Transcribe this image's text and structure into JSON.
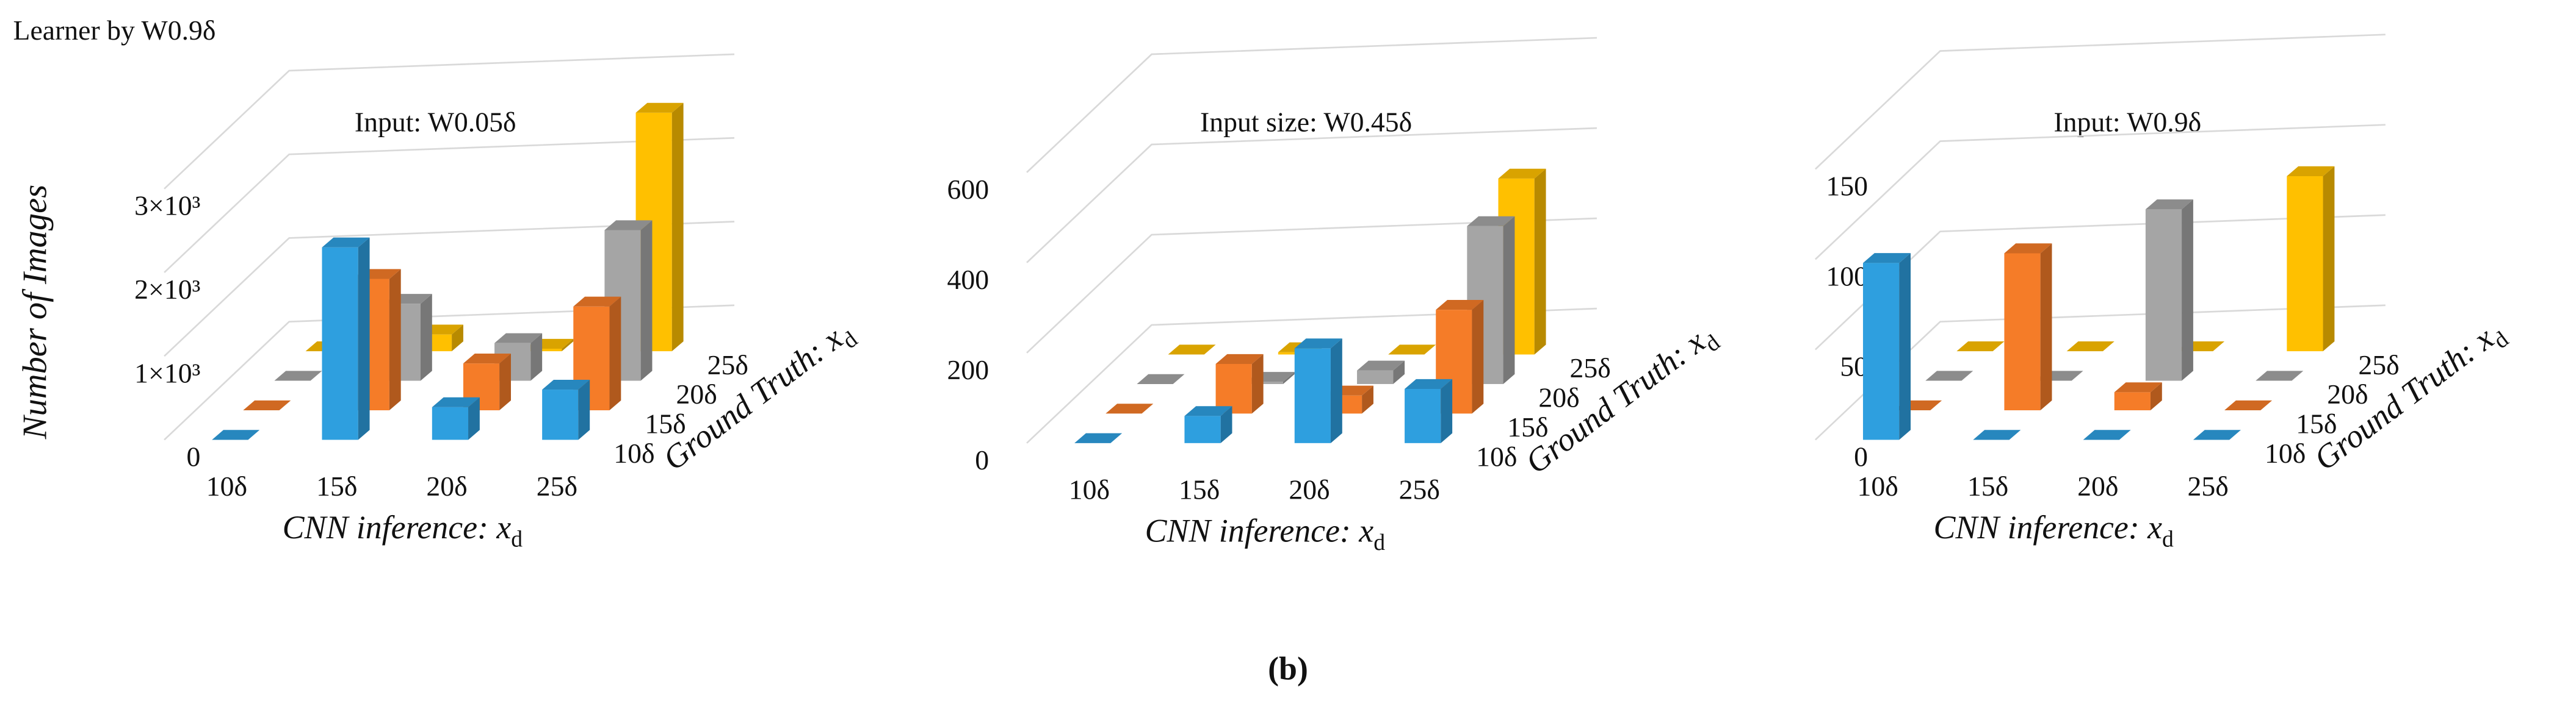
{
  "figure_title": "Learner by W0.9δ",
  "caption": "(b)",
  "chart_data": [
    {
      "type": "bar3d",
      "title": "Input: W0.05δ",
      "ylabel": "Number of Images",
      "xlabel": "CNN inference:  x",
      "xlabel_sub": "d",
      "zlabel": "Ground Truth: x",
      "zlabel_sub": "d",
      "categories": [
        "10δ",
        "15δ",
        "20δ",
        "25δ"
      ],
      "series": [
        {
          "name": "10δ",
          "color": "#2e9fdf",
          "values": [
            0,
            2300,
            390,
            600
          ]
        },
        {
          "name": "15δ",
          "color": "#f57c28",
          "values": [
            0,
            1570,
            560,
            1240
          ]
        },
        {
          "name": "20δ",
          "color": "#a5a5a5",
          "values": [
            0,
            920,
            450,
            1800
          ]
        },
        {
          "name": "25δ",
          "color": "#ffc000",
          "values": [
            0,
            200,
            30,
            2850
          ]
        }
      ],
      "ylim": [
        0,
        4000
      ],
      "yticks": [
        0,
        {
          "value": 1000,
          "label": "1×10³"
        },
        {
          "value": 2000,
          "label": "2×10³"
        },
        {
          "value": 3000,
          "label": "3×10³"
        }
      ],
      "grid": true
    },
    {
      "type": "bar3d",
      "title": "Input size: W0.45δ",
      "xlabel": "CNN inference:  x",
      "xlabel_sub": "d",
      "zlabel": "Ground Truth: x",
      "zlabel_sub": "d",
      "categories": [
        "10δ",
        "15δ",
        "20δ",
        "25δ"
      ],
      "series": [
        {
          "name": "10δ",
          "color": "#2e9fdf",
          "values": [
            0,
            60,
            210,
            120
          ]
        },
        {
          "name": "15δ",
          "color": "#f57c28",
          "values": [
            0,
            110,
            40,
            230
          ]
        },
        {
          "name": "20δ",
          "color": "#a5a5a5",
          "values": [
            0,
            5,
            30,
            350
          ]
        },
        {
          "name": "25δ",
          "color": "#ffc000",
          "values": [
            0,
            5,
            0,
            390
          ]
        }
      ],
      "ylim": [
        0,
        800
      ],
      "yticks": [
        0,
        200,
        400,
        600
      ],
      "grid": true
    },
    {
      "type": "bar3d",
      "title": "Input: W0.9δ",
      "xlabel": "CNN inference:  x",
      "xlabel_sub": "d",
      "zlabel": "Ground Truth: x",
      "zlabel_sub": "d",
      "categories": [
        "10δ",
        "15δ",
        "20δ",
        "25δ"
      ],
      "series": [
        {
          "name": "10δ",
          "color": "#2e9fdf",
          "values": [
            98,
            0,
            0,
            0
          ]
        },
        {
          "name": "15δ",
          "color": "#f57c28",
          "values": [
            0,
            87,
            10,
            0
          ]
        },
        {
          "name": "20δ",
          "color": "#a5a5a5",
          "values": [
            0,
            0,
            95,
            0
          ]
        },
        {
          "name": "25δ",
          "color": "#ffc000",
          "values": [
            0,
            0,
            0,
            97
          ]
        }
      ],
      "ylim": [
        0,
        200
      ],
      "yticks": [
        0,
        50,
        100,
        150
      ],
      "grid": true
    }
  ]
}
